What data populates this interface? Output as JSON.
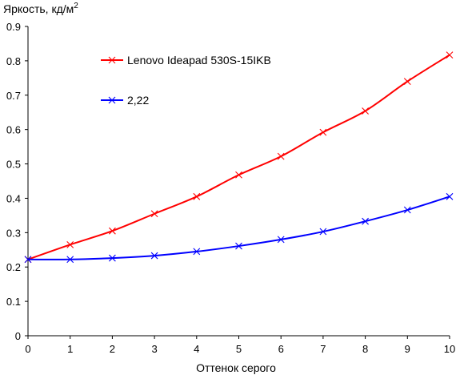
{
  "chart_data": {
    "type": "line",
    "ylabel": "Яркость, кд/м",
    "ylabel_sup": "2",
    "xlabel": "Оттенок серого",
    "xlim": [
      0,
      10
    ],
    "ylim": [
      0,
      0.9
    ],
    "x_ticks": [
      0,
      1,
      2,
      3,
      4,
      5,
      6,
      7,
      8,
      9,
      10
    ],
    "y_ticks": [
      0,
      0.1,
      0.2,
      0.3,
      0.4,
      0.5,
      0.6,
      0.7,
      0.8,
      0.9
    ],
    "grid": false,
    "legend_position": "top-left",
    "x": [
      0,
      1,
      2,
      3,
      4,
      5,
      6,
      7,
      8,
      9,
      10
    ],
    "series": [
      {
        "name": "Lenovo Ideapad 530S-15IKB",
        "color": "#ff0000",
        "marker": "x",
        "values": [
          0.222,
          0.265,
          0.305,
          0.355,
          0.405,
          0.468,
          0.522,
          0.592,
          0.654,
          0.74,
          0.817
        ]
      },
      {
        "name": "2,22",
        "color": "#0000ff",
        "marker": "x",
        "values": [
          0.222,
          0.222,
          0.226,
          0.233,
          0.245,
          0.261,
          0.28,
          0.303,
          0.333,
          0.366,
          0.405
        ]
      }
    ]
  }
}
